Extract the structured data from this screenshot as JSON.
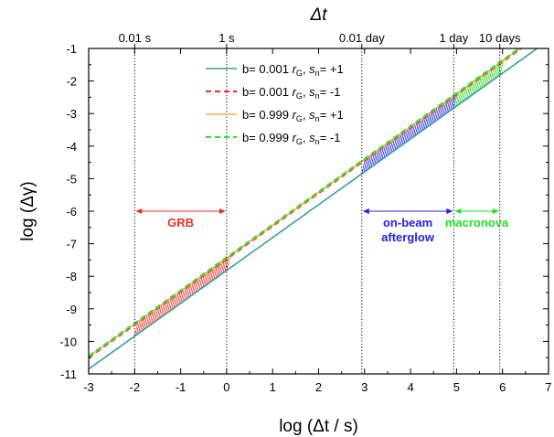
{
  "chart_data": {
    "type": "line",
    "xlabel": "log (Δt / s)",
    "ylabel": "log (Δγ)",
    "top_axis_title": "Δt",
    "xlim": [
      -3,
      7
    ],
    "ylim": [
      -11,
      -1
    ],
    "x_ticks": [
      -3,
      -2,
      -1,
      0,
      1,
      2,
      3,
      4,
      5,
      6,
      7
    ],
    "y_ticks": [
      -11,
      -10,
      -9,
      -8,
      -7,
      -6,
      -5,
      -4,
      -3,
      -2,
      -1
    ],
    "grid": false,
    "legend_position": "top-center",
    "top_ticks": [
      {
        "x": -2,
        "label": "0.01 s"
      },
      {
        "x": 0,
        "label": "1 s"
      },
      {
        "x": 2.94,
        "label": "0.01 day"
      },
      {
        "x": 4.94,
        "label": "1 day"
      },
      {
        "x": 5.94,
        "label": "10 days"
      }
    ],
    "series": [
      {
        "name": "b= 0.001 rG, sn= +1",
        "legend": {
          "pre": "b= 0.001 ",
          "r": "r",
          "rsub": "G",
          "mid": ", ",
          "s": "s",
          "ssub": "n",
          "post": "= +1"
        },
        "color": "#3a9c9c",
        "dash": "solid",
        "x": [
          -3,
          7
        ],
        "y": [
          -10.85,
          -0.75
        ]
      },
      {
        "name": "b= 0.001 rG, sn= -1",
        "legend": {
          "pre": "b= 0.001 ",
          "r": "r",
          "rsub": "G",
          "mid": ", ",
          "s": "s",
          "ssub": "n",
          "post": "= -1"
        },
        "color": "#e8302a",
        "dash": "dashed",
        "x": [
          -3,
          7
        ],
        "y": [
          -10.5,
          -0.4
        ]
      },
      {
        "name": "b= 0.999 rG, sn= +1",
        "legend": {
          "pre": "b= 0.999 ",
          "r": "r",
          "rsub": "G",
          "mid": ", ",
          "s": "s",
          "ssub": "n",
          "post": "= +1"
        },
        "color": "#f0a84a",
        "dash": "solid",
        "x": [
          -3,
          7
        ],
        "y": [
          -10.47,
          -0.37
        ]
      },
      {
        "name": "b= 0.999 rG, sn= -1",
        "legend": {
          "pre": "b= 0.999 ",
          "r": "r",
          "rsub": "G",
          "mid": ", ",
          "s": "s",
          "ssub": "n",
          "post": "= -1"
        },
        "color": "#2ee02e",
        "dash": "dashed",
        "x": [
          -3,
          7
        ],
        "y": [
          -10.45,
          -0.35
        ]
      }
    ],
    "vertical_markers": [
      -2,
      0,
      2.94,
      4.94,
      5.94
    ],
    "regions": [
      {
        "label": "GRB",
        "lines": [
          "GRB"
        ],
        "x_range": [
          -2,
          0
        ],
        "arrow_y": -6,
        "color": "#e8302a"
      },
      {
        "label": "on-beam afterglow",
        "lines": [
          "on-beam",
          "afterglow"
        ],
        "x_range": [
          2.94,
          4.94
        ],
        "arrow_y": -6,
        "color": "#2222dd"
      },
      {
        "label": "macronova",
        "lines": [
          "macronova"
        ],
        "x_range": [
          4.94,
          5.94
        ],
        "arrow_y": -6,
        "color": "#22dd22"
      }
    ]
  }
}
